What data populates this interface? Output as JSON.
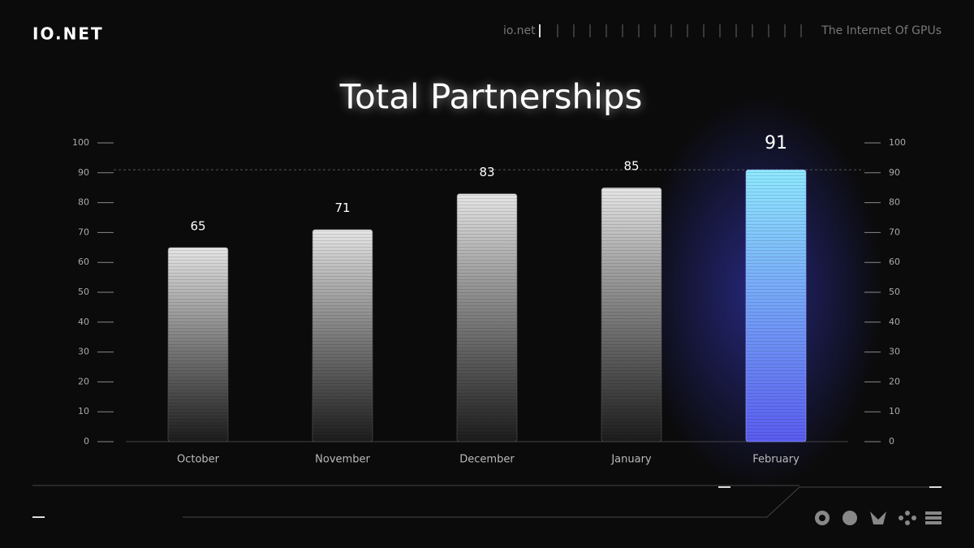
{
  "header": {
    "logo": "IO.NET",
    "site": "io.net",
    "tagline": "The Internet Of GPUs"
  },
  "chart_data": {
    "type": "bar",
    "title": "Total Partnerships",
    "categories": [
      "October",
      "November",
      "December",
      "January",
      "February"
    ],
    "values": [
      65,
      71,
      83,
      85,
      91
    ],
    "colors": [
      "#e6e6e6",
      "#e6e6e6",
      "#e6e6e6",
      "#e6e6e6",
      "#8fe9ff"
    ],
    "ylim": [
      0,
      100
    ],
    "yticks": [
      0,
      10,
      20,
      30,
      40,
      50,
      60,
      70,
      80,
      90,
      100
    ]
  }
}
